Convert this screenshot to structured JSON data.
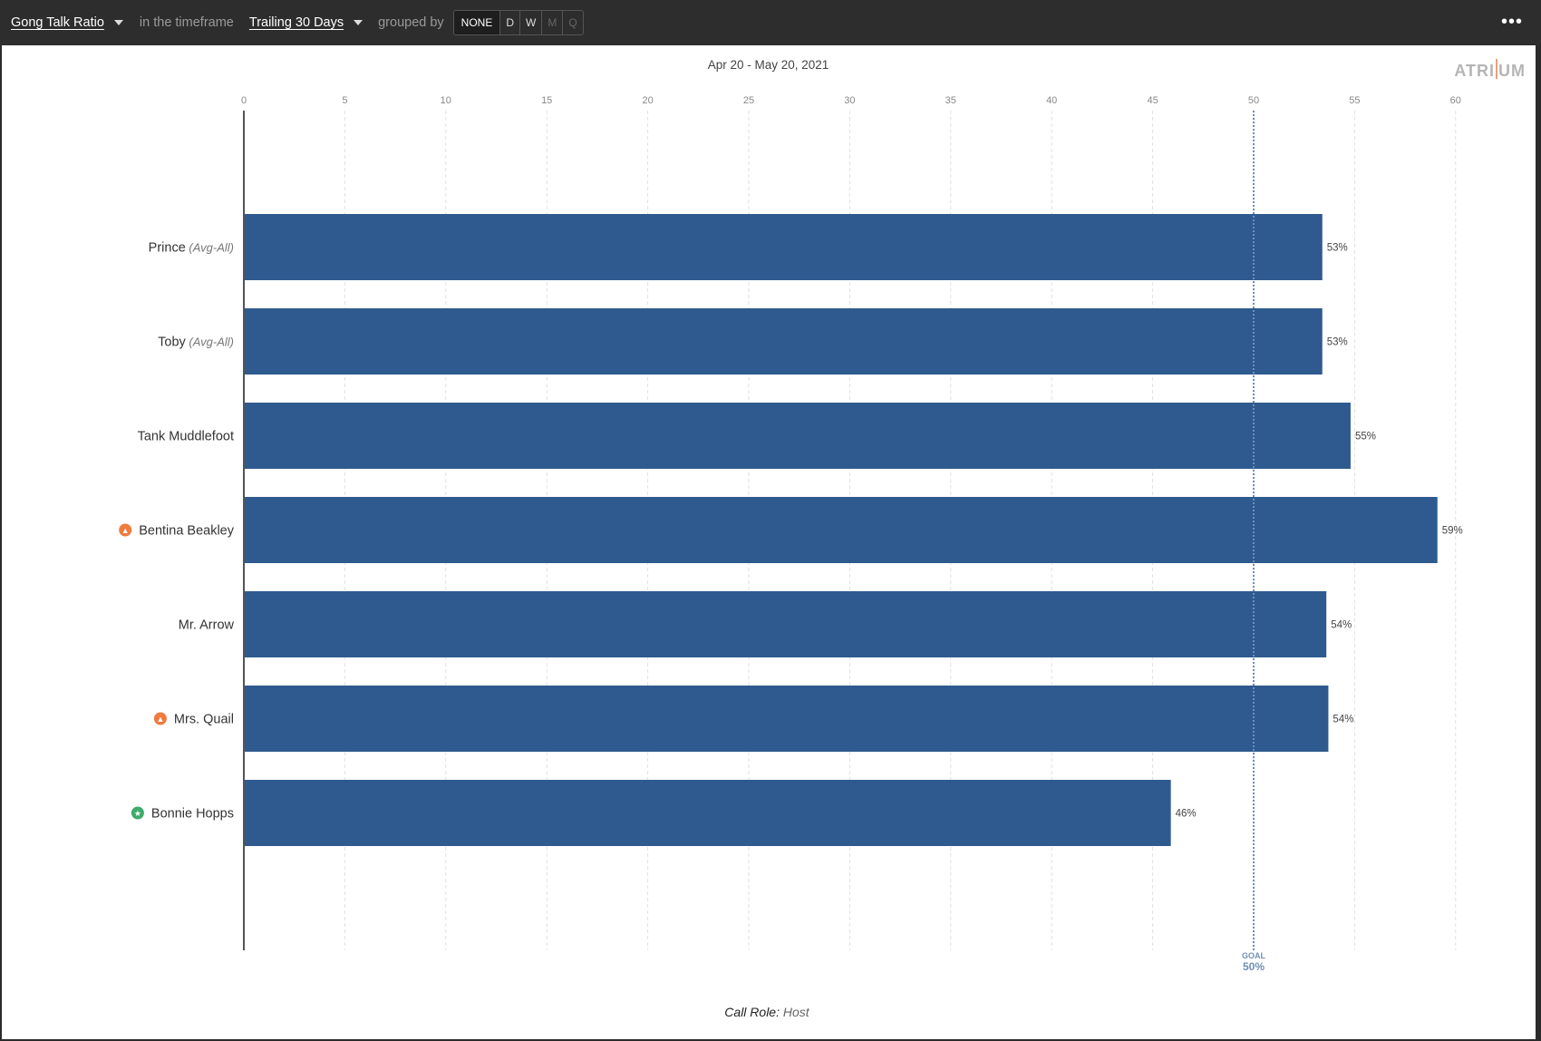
{
  "toolbar": {
    "metric_label": "Gong Talk Ratio",
    "timeframe_prefix": "in the timeframe",
    "timeframe_label": "Trailing 30 Days",
    "grouped_by_label": "grouped by",
    "group_options": [
      "NONE",
      "D",
      "W",
      "M",
      "Q"
    ],
    "selected_group": "NONE",
    "more_icon": "more-icon"
  },
  "brand": {
    "logo_text": "ATRIUM",
    "accent": "#e8a07a"
  },
  "colors": {
    "bar": "#2e5a8f",
    "goal": "#6f8fb8",
    "warning": "#f07b3f",
    "star": "#3dab6b"
  },
  "chart_data": {
    "type": "bar",
    "orientation": "horizontal",
    "subtitle": "Apr 20 - May 20, 2021",
    "xlim": [
      0,
      62
    ],
    "xticks": [
      0,
      5,
      10,
      15,
      20,
      25,
      30,
      35,
      40,
      45,
      50,
      55,
      60
    ],
    "grid": true,
    "categories": [
      {
        "name": "Prince",
        "suffix": "(Avg-All)",
        "icon": null
      },
      {
        "name": "Toby",
        "suffix": "(Avg-All)",
        "icon": null
      },
      {
        "name": "Tank Muddlefoot",
        "suffix": "",
        "icon": null
      },
      {
        "name": "Bentina Beakley",
        "suffix": "",
        "icon": "warning-icon"
      },
      {
        "name": "Mr. Arrow",
        "suffix": "",
        "icon": null
      },
      {
        "name": "Mrs. Quail",
        "suffix": "",
        "icon": "warning-icon"
      },
      {
        "name": "Bonnie Hopps",
        "suffix": "",
        "icon": "star-icon"
      }
    ],
    "values": [
      53.4,
      53.4,
      54.8,
      59.1,
      53.6,
      53.7,
      45.9
    ],
    "value_labels": [
      "53%",
      "53%",
      "55%",
      "59%",
      "54%",
      "54%",
      "46%"
    ],
    "goal": {
      "label": "GOAL",
      "value": 50,
      "value_label": "50%"
    },
    "footer": {
      "label": "Call Role:",
      "value": "Host"
    }
  }
}
